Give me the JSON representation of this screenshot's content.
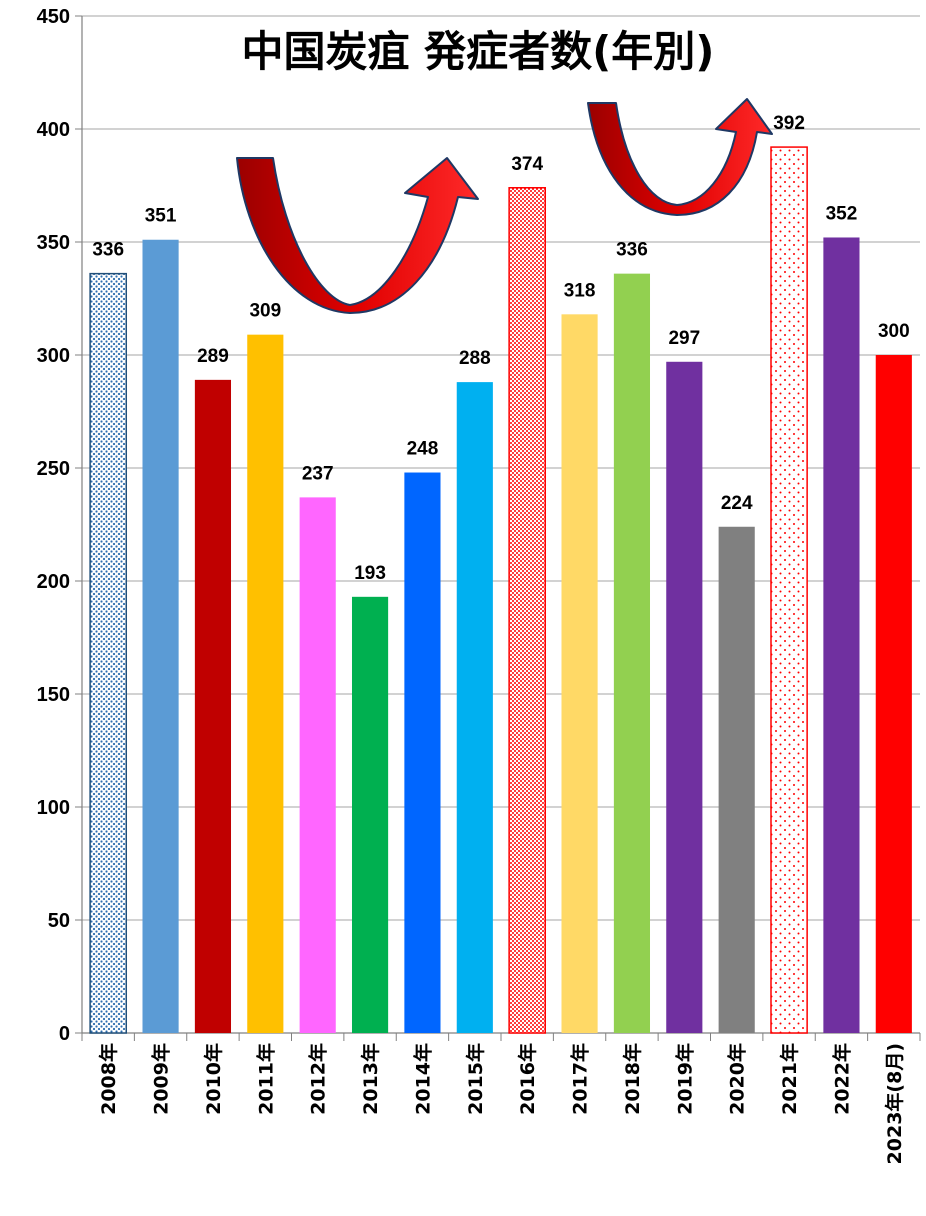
{
  "chart_data": {
    "type": "bar",
    "title": "中国炭疽 発症者数(年別)",
    "categories": [
      "2008年",
      "2009年",
      "2010年",
      "2011年",
      "2012年",
      "2013年",
      "2014年",
      "2015年",
      "2016年",
      "2017年",
      "2018年",
      "2019年",
      "2020年",
      "2021年",
      "2022年",
      "2023年(8月)"
    ],
    "values": [
      336,
      351,
      289,
      309,
      237,
      193,
      248,
      288,
      374,
      318,
      336,
      297,
      224,
      392,
      352,
      300
    ],
    "colors": [
      "#2f6fb0",
      "#5b9bd5",
      "#c00000",
      "#ffc000",
      "#ff66ff",
      "#00b050",
      "#0066ff",
      "#00b0f0",
      "#ff0000",
      "#ffd966",
      "#92d050",
      "#7030a0",
      "#808080",
      "#ff0000",
      "#7030a0",
      "#ff0000"
    ],
    "fill_styles": [
      "dotted",
      "solid",
      "solid",
      "solid",
      "solid",
      "solid",
      "solid",
      "solid",
      "dotted",
      "solid",
      "solid",
      "solid",
      "solid",
      "dotted",
      "solid",
      "solid"
    ],
    "ylim": [
      0,
      450
    ],
    "yticks": [
      0,
      50,
      100,
      150,
      200,
      250,
      300,
      350,
      400,
      450
    ],
    "xlabel": "",
    "ylabel": "",
    "grid": true,
    "data_labels": true,
    "annotations": [
      "red U-turn arrow between 2011 and 2015",
      "red U-turn arrow between 2018 and 2021"
    ]
  }
}
